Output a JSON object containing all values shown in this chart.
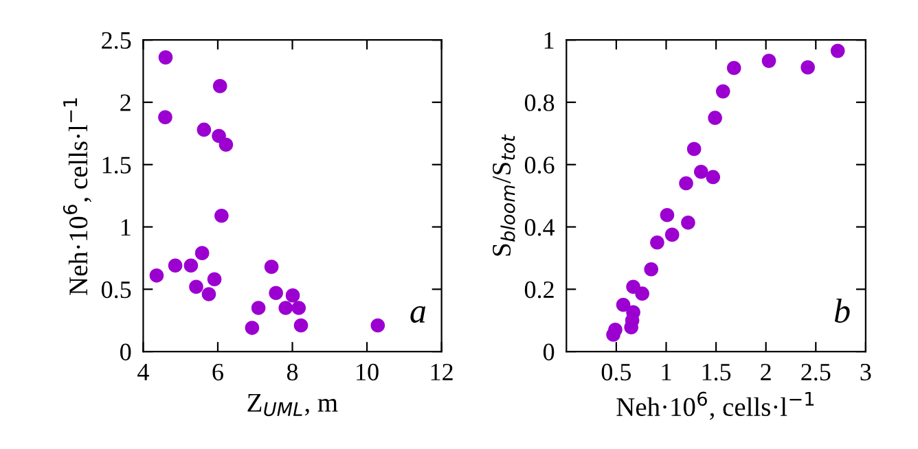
{
  "chart_data": [
    {
      "type": "scatter",
      "xlabel": "Z$_{UML}$, m",
      "ylabel": "Neh·10$^{6}$, cells·l$^{−1}$",
      "annotations": [
        "a"
      ],
      "xlim": [
        4,
        12
      ],
      "ylim": [
        0,
        2.5
      ],
      "xticks": [
        4,
        6,
        8,
        10,
        12
      ],
      "yticks": [
        0,
        0.5,
        1,
        1.5,
        2,
        2.5
      ],
      "grid": false,
      "legend": false,
      "marker": "circle",
      "series": [
        {
          "color": "#9b00d0",
          "x": [
            4.6,
            6.06,
            4.59,
            5.63,
            6.03,
            6.22,
            6.1,
            4.36,
            4.86,
            5.28,
            5.58,
            5.42,
            5.91,
            5.76,
            7.44,
            7.09,
            6.92,
            7.56,
            8.01,
            7.82,
            8.17,
            8.23,
            10.29
          ],
          "values": [
            2.36,
            2.13,
            1.88,
            1.78,
            1.73,
            1.66,
            1.09,
            0.61,
            0.69,
            0.69,
            0.79,
            0.52,
            0.58,
            0.46,
            0.68,
            0.35,
            0.19,
            0.47,
            0.45,
            0.35,
            0.35,
            0.21,
            0.21
          ]
        }
      ]
    },
    {
      "type": "scatter",
      "xlabel": "Neh·10$^{6}$, cells·l$^{−1}$",
      "ylabel": "S$_{bloom}$/S$_{tot}$",
      "annotations": [
        "b"
      ],
      "xlim": [
        0,
        3
      ],
      "ylim": [
        0,
        1
      ],
      "xticks": [
        0.5,
        1,
        1.5,
        2,
        2.5,
        3
      ],
      "yticks": [
        0,
        0.2,
        0.4,
        0.6,
        0.8,
        1
      ],
      "grid": false,
      "legend": false,
      "marker": "circle",
      "series": [
        {
          "color": "#9b00d0",
          "x": [
            0.47,
            0.49,
            0.57,
            0.65,
            0.66,
            0.67,
            0.67,
            0.76,
            0.85,
            0.91,
            1.01,
            1.06,
            1.2,
            1.22,
            1.28,
            1.35,
            1.47,
            1.49,
            1.57,
            1.68,
            2.03,
            2.42,
            2.72
          ],
          "values": [
            0.054,
            0.07,
            0.15,
            0.078,
            0.1,
            0.126,
            0.208,
            0.186,
            0.264,
            0.35,
            0.438,
            0.375,
            0.54,
            0.414,
            0.65,
            0.577,
            0.56,
            0.75,
            0.835,
            0.91,
            0.933,
            0.912,
            0.965
          ]
        }
      ]
    }
  ]
}
